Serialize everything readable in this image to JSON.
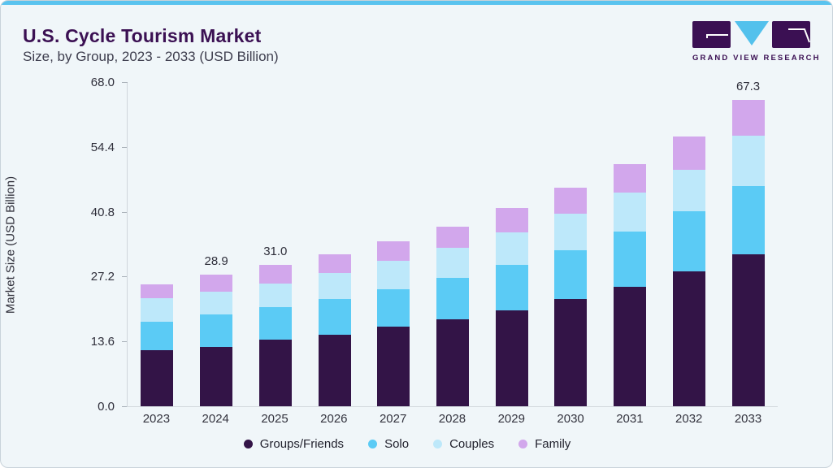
{
  "header": {
    "title": "U.S. Cycle Tourism Market",
    "subtitle": "Size, by Group, 2023 - 2033 (USD Billion)",
    "logo_wordmark": "GRAND VIEW RESEARCH"
  },
  "colors": {
    "accent_strip": "#5AC3EF",
    "card_bg": "#F0F6F9",
    "title_purple": "#3B1053",
    "axis_line": "#CFD6DB"
  },
  "chart_data": {
    "type": "bar",
    "stacked": true,
    "title": "U.S. Cycle Tourism Market Size, by Group, 2023 - 2033 (USD Billion)",
    "xlabel": "",
    "ylabel": "Market Size (USD Billion)",
    "ylim": [
      0,
      68
    ],
    "ytick_labels": [
      "0.0",
      "13.6",
      "27.2",
      "40.8",
      "54.4",
      "68.0"
    ],
    "ytick_values": [
      0,
      13.6,
      27.2,
      40.8,
      54.4,
      68
    ],
    "grid": false,
    "legend_position": "bottom",
    "categories": [
      "2023",
      "2024",
      "2025",
      "2026",
      "2027",
      "2028",
      "2029",
      "2030",
      "2031",
      "2032",
      "2033"
    ],
    "series": [
      {
        "name": "Groups/Friends",
        "color": "#331447",
        "values": [
          12.3,
          13.1,
          14.6,
          15.7,
          17.4,
          19.1,
          21.0,
          23.6,
          26.2,
          29.7,
          33.3
        ]
      },
      {
        "name": "Solo",
        "color": "#5BCBF5",
        "values": [
          6.2,
          7.0,
          7.2,
          7.8,
          8.3,
          9.0,
          10.0,
          10.6,
          12.1,
          13.2,
          15.0
        ]
      },
      {
        "name": "Couples",
        "color": "#BDE8FA",
        "values": [
          5.2,
          5.0,
          5.2,
          5.8,
          6.3,
          6.7,
          7.1,
          8.1,
          8.6,
          9.1,
          11.1
        ]
      },
      {
        "name": "Family",
        "color": "#D2A7EC",
        "values": [
          3.1,
          3.8,
          4.0,
          4.0,
          4.3,
          4.6,
          5.4,
          5.7,
          6.2,
          7.2,
          7.9
        ]
      }
    ],
    "bar_total_labels": [
      "",
      "28.9",
      "31.0",
      "",
      "",
      "",
      "",
      "",
      "",
      "",
      "67.3"
    ]
  }
}
